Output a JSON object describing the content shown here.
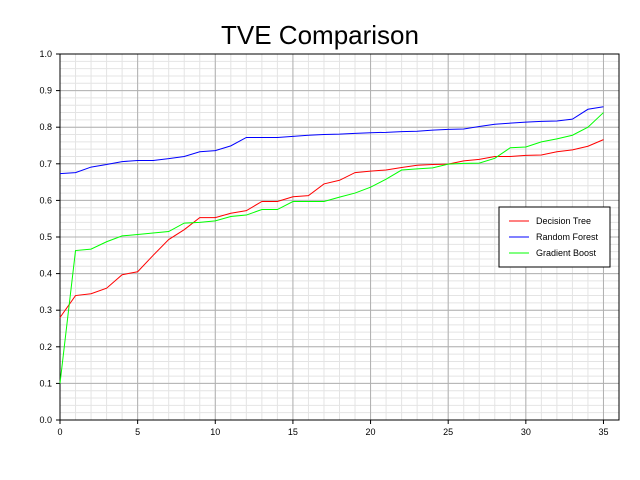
{
  "chart_data": {
    "type": "line",
    "title": "TVE Comparison",
    "xlabel": "",
    "ylabel": "",
    "xlim": [
      0,
      36
    ],
    "ylim": [
      0,
      1.0
    ],
    "x_ticks": [
      0,
      5,
      10,
      15,
      20,
      25,
      30,
      35
    ],
    "y_ticks": [
      0.0,
      0.1,
      0.2,
      0.3,
      0.4,
      0.5,
      0.6,
      0.7,
      0.8,
      0.9,
      1.0
    ],
    "y_tick_labels": [
      "0.0",
      "0.1",
      "0.2",
      "0.3",
      "0.4",
      "0.5",
      "0.6",
      "0.7",
      "0.8",
      "0.9",
      "1.0"
    ],
    "grid": true,
    "legend_position": "right",
    "x": [
      0,
      1,
      2,
      3,
      4,
      5,
      6,
      7,
      8,
      9,
      10,
      11,
      12,
      13,
      14,
      15,
      16,
      17,
      18,
      19,
      20,
      21,
      22,
      23,
      24,
      25,
      26,
      27,
      28,
      29,
      30,
      31,
      32,
      33,
      34,
      35
    ],
    "series": [
      {
        "name": "Decision Tree",
        "color": "#ff0000",
        "values": [
          0.28,
          0.34,
          0.345,
          0.36,
          0.397,
          0.405,
          0.45,
          0.493,
          0.52,
          0.553,
          0.553,
          0.565,
          0.572,
          0.597,
          0.597,
          0.61,
          0.613,
          0.645,
          0.655,
          0.676,
          0.68,
          0.683,
          0.69,
          0.696,
          0.698,
          0.699,
          0.708,
          0.712,
          0.72,
          0.72,
          0.723,
          0.724,
          0.733,
          0.738,
          0.748,
          0.766
        ]
      },
      {
        "name": "Random Forest",
        "color": "#0000ff",
        "values": [
          0.673,
          0.676,
          0.691,
          0.698,
          0.706,
          0.709,
          0.709,
          0.714,
          0.72,
          0.733,
          0.736,
          0.749,
          0.772,
          0.772,
          0.772,
          0.775,
          0.778,
          0.78,
          0.781,
          0.783,
          0.785,
          0.786,
          0.788,
          0.789,
          0.792,
          0.794,
          0.795,
          0.802,
          0.808,
          0.811,
          0.814,
          0.816,
          0.817,
          0.822,
          0.849,
          0.856
        ]
      },
      {
        "name": "Gradient Boost",
        "color": "#00ff00",
        "values": [
          0.1,
          0.463,
          0.467,
          0.487,
          0.503,
          0.507,
          0.511,
          0.515,
          0.538,
          0.54,
          0.544,
          0.556,
          0.56,
          0.575,
          0.575,
          0.597,
          0.597,
          0.597,
          0.609,
          0.62,
          0.636,
          0.658,
          0.683,
          0.686,
          0.689,
          0.699,
          0.701,
          0.702,
          0.715,
          0.744,
          0.746,
          0.76,
          0.768,
          0.778,
          0.8,
          0.84
        ]
      }
    ]
  }
}
